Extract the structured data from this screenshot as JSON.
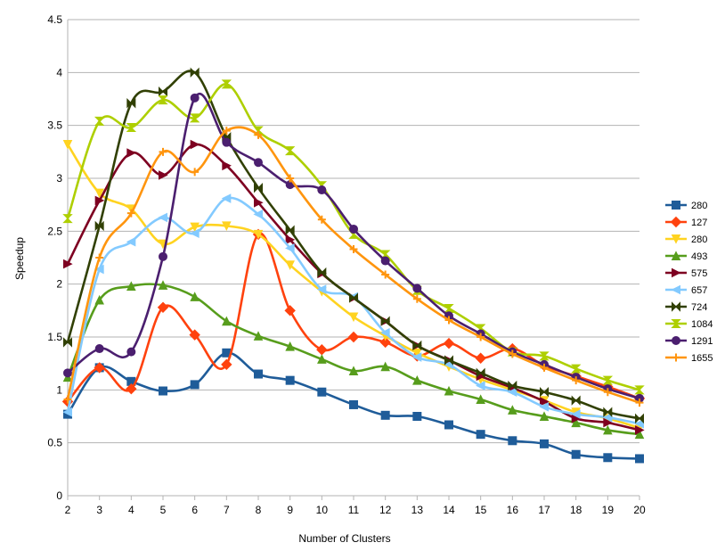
{
  "chart_data": {
    "type": "line",
    "title": "",
    "xlabel": "Number of Clusters",
    "ylabel": "Speedup",
    "x": [
      2,
      3,
      4,
      5,
      6,
      7,
      8,
      9,
      10,
      11,
      12,
      13,
      14,
      15,
      16,
      17,
      18,
      19,
      20
    ],
    "xlim": [
      2,
      20
    ],
    "ylim": [
      0,
      4.5
    ],
    "yticks": [
      "0",
      "0.5",
      "1",
      "1.5",
      "2",
      "2.5",
      "3",
      "3.5",
      "4",
      "4.5"
    ],
    "grid": "horizontal",
    "smooth": true,
    "legend_position": "right",
    "series": [
      {
        "name": "280",
        "color": "#1f5c99",
        "marker": "square",
        "values": [
          0.77,
          1.21,
          1.08,
          0.99,
          1.05,
          1.35,
          1.15,
          1.09,
          0.98,
          0.86,
          0.76,
          0.75,
          0.67,
          0.58,
          0.52,
          0.49,
          0.39,
          0.36,
          0.35
        ]
      },
      {
        "name": "127",
        "color": "#ff420e",
        "marker": "diamond",
        "values": [
          0.89,
          1.21,
          1.01,
          1.78,
          1.52,
          1.24,
          2.47,
          1.75,
          1.38,
          1.5,
          1.45,
          1.32,
          1.44,
          1.3,
          1.39,
          1.23,
          1.13,
          1.03,
          0.92
        ]
      },
      {
        "name": "280",
        "color": "#ffd320",
        "marker": "triangle-down",
        "values": [
          3.32,
          2.86,
          2.71,
          2.38,
          2.54,
          2.55,
          2.47,
          2.18,
          1.93,
          1.69,
          1.51,
          1.35,
          1.22,
          1.1,
          1.0,
          0.9,
          0.79,
          0.73,
          0.64
        ]
      },
      {
        "name": "493",
        "color": "#579d1c",
        "marker": "triangle-up",
        "values": [
          1.12,
          1.85,
          1.98,
          1.99,
          1.88,
          1.65,
          1.51,
          1.41,
          1.29,
          1.18,
          1.22,
          1.09,
          0.99,
          0.91,
          0.81,
          0.75,
          0.69,
          0.62,
          0.58
        ]
      },
      {
        "name": "575",
        "color": "#7e0021",
        "marker": "triangle-right",
        "values": [
          2.19,
          2.79,
          3.24,
          3.03,
          3.32,
          3.12,
          2.77,
          2.42,
          2.1,
          1.87,
          1.65,
          1.42,
          1.28,
          1.13,
          1.02,
          0.89,
          0.73,
          0.69,
          0.62
        ]
      },
      {
        "name": "657",
        "color": "#83caff",
        "marker": "triangle-left",
        "values": [
          0.79,
          2.14,
          2.4,
          2.63,
          2.48,
          2.81,
          2.66,
          2.34,
          1.95,
          1.88,
          1.54,
          1.31,
          1.24,
          1.04,
          0.98,
          0.84,
          0.77,
          0.74,
          0.68
        ]
      },
      {
        "name": "724",
        "color": "#314004",
        "marker": "bowtie",
        "values": [
          1.45,
          2.55,
          3.71,
          3.82,
          4.0,
          3.39,
          2.91,
          2.51,
          2.11,
          1.87,
          1.65,
          1.42,
          1.28,
          1.16,
          1.04,
          0.98,
          0.9,
          0.79,
          0.73
        ]
      },
      {
        "name": "1084",
        "color": "#aecf00",
        "marker": "hourglass",
        "values": [
          2.62,
          3.54,
          3.48,
          3.74,
          3.57,
          3.89,
          3.45,
          3.26,
          2.93,
          2.47,
          2.28,
          1.94,
          1.77,
          1.58,
          1.36,
          1.32,
          1.2,
          1.09,
          1.0
        ]
      },
      {
        "name": "1291",
        "color": "#4b1f6f",
        "marker": "circle",
        "values": [
          1.16,
          1.39,
          1.36,
          2.26,
          3.76,
          3.34,
          3.15,
          2.94,
          2.89,
          2.52,
          2.22,
          1.96,
          1.7,
          1.53,
          1.36,
          1.24,
          1.12,
          1.01,
          0.92
        ]
      },
      {
        "name": "1655",
        "color": "#ff950e",
        "marker": "plus",
        "values": [
          0.91,
          2.25,
          2.67,
          3.25,
          3.06,
          3.45,
          3.41,
          3.0,
          2.61,
          2.33,
          2.09,
          1.86,
          1.66,
          1.5,
          1.34,
          1.21,
          1.09,
          0.98,
          0.88
        ]
      }
    ]
  }
}
